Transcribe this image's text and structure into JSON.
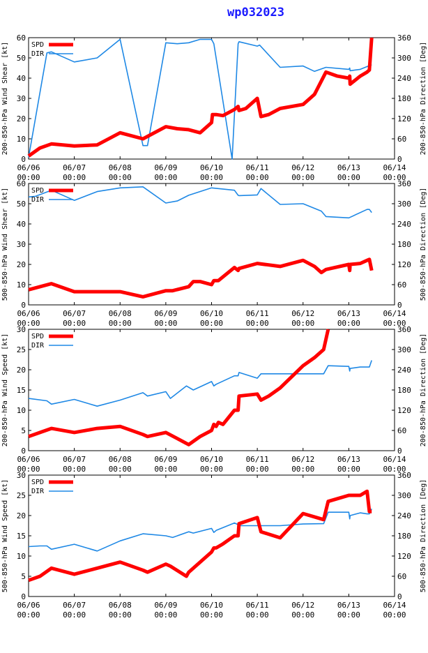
{
  "title": "wp032023",
  "colors": {
    "spd": "#ff0000",
    "dir": "#1e88e5",
    "axis": "#000000"
  },
  "chart_data": [
    {
      "type": "line",
      "ylabel_left": "200-850-hPa Wind Shear [kt]",
      "ylabel_right": "200-850-hPa Direction [Deg]",
      "ylim_left": [
        0,
        60
      ],
      "yticks_left": [
        0,
        10,
        20,
        30,
        40,
        50,
        60
      ],
      "ylim_right": [
        0,
        360
      ],
      "yticks_right": [
        0,
        60,
        120,
        180,
        240,
        300,
        360
      ],
      "xlim": [
        0,
        8
      ],
      "xticks": [
        [
          "06/06",
          "00:00"
        ],
        [
          "06/07",
          "00:00"
        ],
        [
          "06/08",
          "00:00"
        ],
        [
          "06/09",
          "00:00"
        ],
        [
          "06/10",
          "00:00"
        ],
        [
          "06/11",
          "00:00"
        ],
        [
          "06/12",
          "00:00"
        ],
        [
          "06/13",
          "00:00"
        ],
        [
          "06/14",
          "00:00"
        ]
      ],
      "legend": [
        "SPD",
        "DIR"
      ],
      "series": [
        {
          "name": "SPD",
          "axis": "left",
          "x": [
            0,
            0.25,
            0.5,
            1,
            1.5,
            2,
            2.5,
            3,
            3.25,
            3.5,
            3.75,
            4,
            4.02,
            4.1,
            4.25,
            4.5,
            4.58,
            4.6,
            4.75,
            5,
            5.08,
            5.25,
            5.5,
            6,
            6.25,
            6.5,
            6.75,
            7,
            7.02,
            7.03,
            7.25,
            7.4,
            7.45,
            7.5
          ],
          "y": [
            1.5,
            5.5,
            7.5,
            6.5,
            7,
            13,
            10,
            16,
            15,
            14.5,
            13,
            18,
            22,
            22,
            21.5,
            24.5,
            26,
            24,
            25,
            30,
            21,
            22,
            25,
            27,
            32,
            43,
            41,
            40,
            41,
            37,
            41,
            43,
            44,
            60
          ]
        },
        {
          "name": "DIR",
          "axis": "right",
          "x": [
            0,
            0.4,
            0.5,
            1,
            1.5,
            2,
            2.5,
            2.6,
            3,
            3.25,
            3.5,
            3.75,
            4,
            4.05,
            4.45,
            4.58,
            4.6,
            5,
            5.05,
            5.5,
            6,
            6.25,
            6.5,
            7,
            7.02,
            7.03,
            7.25,
            7.5
          ],
          "y": [
            5,
            315,
            318,
            288,
            300,
            355,
            40,
            40,
            345,
            342,
            345,
            355,
            355,
            342,
            0,
            342,
            348,
            335,
            338,
            272,
            276,
            260,
            272,
            266,
            270,
            262,
            266,
            280
          ]
        }
      ]
    },
    {
      "type": "line",
      "ylabel_left": "500-850-hPa Wind Shear [kt]",
      "ylabel_right": "500-850-hPa Direction [Deg]",
      "ylim_left": [
        0,
        60
      ],
      "yticks_left": [
        0,
        10,
        20,
        30,
        40,
        50,
        60
      ],
      "ylim_right": [
        0,
        360
      ],
      "yticks_right": [
        0,
        60,
        120,
        180,
        240,
        300,
        360
      ],
      "xlim": [
        0,
        8
      ],
      "xticks": [
        [
          "06/06",
          "00:00"
        ],
        [
          "06/07",
          "00:00"
        ],
        [
          "06/08",
          "00:00"
        ],
        [
          "06/09",
          "00:00"
        ],
        [
          "06/10",
          "00:00"
        ],
        [
          "06/11",
          "00:00"
        ],
        [
          "06/12",
          "00:00"
        ],
        [
          "06/13",
          "00:00"
        ],
        [
          "06/14",
          "00:00"
        ]
      ],
      "legend": [
        "SPD",
        "DIR"
      ],
      "series": [
        {
          "name": "SPD",
          "axis": "left",
          "x": [
            0,
            0.25,
            0.5,
            1,
            1.5,
            2,
            2.5,
            3,
            3.15,
            3.5,
            3.6,
            3.75,
            4,
            4.05,
            4.15,
            4.5,
            4.58,
            4.6,
            5,
            5.5,
            6,
            6.25,
            6.4,
            6.5,
            7,
            7.02,
            7.03,
            7.25,
            7.4,
            7.45,
            7.5
          ],
          "y": [
            7.5,
            9,
            10.5,
            6.5,
            6.5,
            6.5,
            4,
            7,
            7,
            9,
            11.5,
            11.5,
            10,
            12,
            12,
            18.5,
            17,
            18,
            20.5,
            19,
            22,
            19,
            16,
            17.5,
            20,
            17,
            20,
            20.5,
            22,
            22.5,
            17
          ]
        },
        {
          "name": "DIR",
          "axis": "right",
          "x": [
            0,
            0.15,
            0.5,
            1,
            1.5,
            2,
            2.5,
            3,
            3.25,
            3.5,
            4,
            4.5,
            4.58,
            4.6,
            5,
            5.08,
            5.5,
            6,
            6.4,
            6.5,
            7,
            7.4,
            7.45,
            7.5
          ],
          "y": [
            320,
            322,
            340,
            310,
            336,
            347,
            350,
            302,
            308,
            325,
            347,
            340,
            325,
            324,
            326,
            345,
            298,
            300,
            278,
            262,
            258,
            283,
            283,
            274
          ]
        }
      ]
    },
    {
      "type": "line",
      "ylabel_left": "200-850-hPa Wind Speed [kt]",
      "ylabel_right": "200-850-hPa Direction [Deg]",
      "ylim_left": [
        0,
        30
      ],
      "yticks_left": [
        0,
        5,
        10,
        15,
        20,
        25,
        30
      ],
      "ylim_right": [
        0,
        360
      ],
      "yticks_right": [
        0,
        60,
        120,
        180,
        240,
        300,
        360
      ],
      "xlim": [
        0,
        8
      ],
      "xticks": [
        [
          "06/06",
          "00:00"
        ],
        [
          "06/07",
          "00:00"
        ],
        [
          "06/08",
          "00:00"
        ],
        [
          "06/09",
          "00:00"
        ],
        [
          "06/10",
          "00:00"
        ],
        [
          "06/11",
          "00:00"
        ],
        [
          "06/12",
          "00:00"
        ],
        [
          "06/13",
          "00:00"
        ],
        [
          "06/14",
          "00:00"
        ]
      ],
      "legend": [
        "SPD",
        "DIR"
      ],
      "series": [
        {
          "name": "SPD",
          "axis": "left",
          "x": [
            0,
            0.25,
            0.5,
            1,
            1.5,
            2,
            2.5,
            2.6,
            3,
            3.25,
            3.5,
            3.75,
            4,
            4.05,
            4.1,
            4.15,
            4.25,
            4.5,
            4.58,
            4.6,
            5,
            5.08,
            5.25,
            5.5,
            6,
            6.25,
            6.45,
            6.55
          ],
          "y": [
            3.5,
            4.5,
            5.5,
            4.5,
            5.5,
            6,
            4,
            3.5,
            4.5,
            3,
            1.5,
            3.5,
            5,
            6.5,
            6,
            7,
            6.5,
            10,
            10,
            13.5,
            14,
            12.5,
            13.5,
            15.5,
            21,
            23,
            25,
            30
          ]
        },
        {
          "name": "DIR",
          "axis": "right",
          "x": [
            0,
            0.4,
            0.5,
            1,
            1.5,
            2,
            2.5,
            2.6,
            3,
            3.1,
            3.45,
            3.6,
            4,
            4.05,
            4.1,
            4.5,
            4.58,
            4.6,
            5,
            5.08,
            5.5,
            6,
            6.45,
            6.55,
            7,
            7.02,
            7.03,
            7.25,
            7.45,
            7.5
          ],
          "y": [
            155,
            148,
            138,
            152,
            132,
            150,
            172,
            162,
            175,
            155,
            192,
            180,
            205,
            192,
            197,
            222,
            222,
            232,
            215,
            228,
            228,
            228,
            228,
            252,
            250,
            236,
            244,
            248,
            248,
            268
          ]
        }
      ]
    },
    {
      "type": "line",
      "ylabel_left": "500-850-hPa Wind Speed [kt]",
      "ylabel_right": "500-850-hPa Direction [Deg]",
      "ylim_left": [
        0,
        30
      ],
      "yticks_left": [
        0,
        5,
        10,
        15,
        20,
        25,
        30
      ],
      "ylim_right": [
        0,
        360
      ],
      "yticks_right": [
        0,
        60,
        120,
        180,
        240,
        300,
        360
      ],
      "xlim": [
        0,
        8
      ],
      "xticks": [
        [
          "06/06",
          "00:00"
        ],
        [
          "06/07",
          "00:00"
        ],
        [
          "06/08",
          "00:00"
        ],
        [
          "06/09",
          "00:00"
        ],
        [
          "06/10",
          "00:00"
        ],
        [
          "06/11",
          "00:00"
        ],
        [
          "06/12",
          "00:00"
        ],
        [
          "06/13",
          "00:00"
        ],
        [
          "06/14",
          "00:00"
        ]
      ],
      "legend": [
        "SPD",
        "DIR"
      ],
      "series": [
        {
          "name": "SPD",
          "axis": "left",
          "x": [
            0,
            0.25,
            0.5,
            1,
            1.5,
            2,
            2.5,
            2.6,
            3,
            3.1,
            3.45,
            3.5,
            3.75,
            4,
            4.05,
            4.1,
            4.25,
            4.5,
            4.58,
            4.6,
            5,
            5.08,
            5.5,
            6,
            6.45,
            6.55,
            7,
            7.1,
            7.25,
            7.4,
            7.45,
            7.5
          ],
          "y": [
            4,
            5,
            7,
            5.5,
            7,
            8.5,
            6.5,
            6,
            8,
            7.5,
            5,
            6,
            8.5,
            11,
            12,
            12,
            13,
            15,
            15,
            18,
            19.5,
            16,
            14.5,
            20.5,
            19,
            23.5,
            25,
            25,
            25,
            26,
            21,
            21
          ]
        },
        {
          "name": "DIR",
          "axis": "right",
          "x": [
            0,
            0.25,
            0.4,
            0.5,
            1,
            1.5,
            2,
            2.5,
            3,
            3.15,
            3.5,
            3.6,
            4,
            4.05,
            4.1,
            4.5,
            4.58,
            4.6,
            5,
            5.5,
            6,
            6.45,
            6.55,
            7,
            7.02,
            7.03,
            7.25,
            7.4,
            7.45,
            7.5
          ],
          "y": [
            148,
            150,
            150,
            140,
            155,
            135,
            165,
            186,
            180,
            175,
            192,
            188,
            202,
            190,
            196,
            218,
            213,
            210,
            210,
            210,
            215,
            216,
            250,
            250,
            230,
            240,
            248,
            245,
            245,
            260
          ]
        }
      ]
    }
  ]
}
